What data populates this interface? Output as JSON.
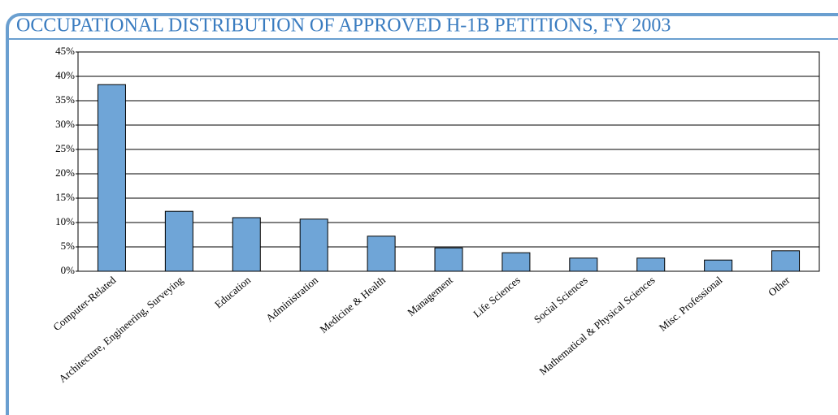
{
  "chart_data": {
    "type": "bar",
    "title": "OCCUPATIONAL DISTRIBUTION OF APPROVED H-1B PETITIONS, FY 2003",
    "categories": [
      "Computer-Related",
      "Architecture, Engineering, Surveying",
      "Education",
      "Administration",
      "Medicine & Health",
      "Management",
      "Life Sciences",
      "Social Sciences",
      "Mathematical & Physical Sciences",
      "Misc. Professional",
      "Other"
    ],
    "values": [
      38.3,
      12.3,
      11.0,
      10.7,
      7.2,
      4.8,
      3.8,
      2.7,
      2.7,
      2.3,
      4.2
    ],
    "color": "#6fa5d7",
    "ylim": [
      0,
      45
    ],
    "yticks": [
      {
        "value": 0,
        "label": "0%"
      },
      {
        "value": 5,
        "label": "5%"
      },
      {
        "value": 10,
        "label": "10%"
      },
      {
        "value": 15,
        "label": "15%"
      },
      {
        "value": 20,
        "label": "20%"
      },
      {
        "value": 25,
        "label": "25%"
      },
      {
        "value": 30,
        "label": "30%"
      },
      {
        "value": 35,
        "label": "35%"
      },
      {
        "value": 40,
        "label": "40%"
      },
      {
        "value": 45,
        "label": "45%"
      }
    ],
    "grid": true
  }
}
